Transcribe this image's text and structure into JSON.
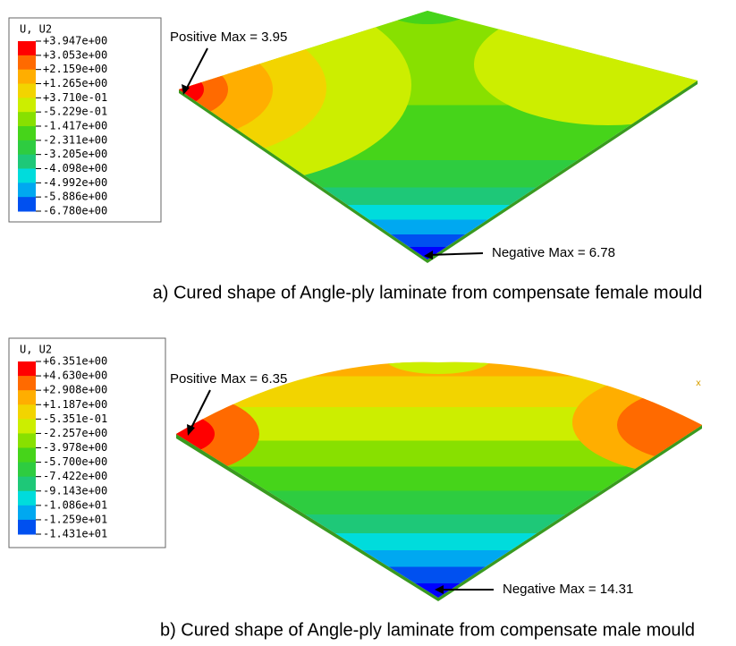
{
  "panels": [
    {
      "legend": {
        "title": "U, U2",
        "labels": [
          "+3.947e+00",
          "+3.053e+00",
          "+2.159e+00",
          "+1.265e+00",
          "+3.710e-01",
          "-5.229e-01",
          "-1.417e+00",
          "-2.311e+00",
          "-3.205e+00",
          "-4.098e+00",
          "-4.992e+00",
          "-5.886e+00",
          "-6.780e+00"
        ]
      },
      "positive_max": "Positive Max = 3.95",
      "negative_max": "Negative Max = 6.78",
      "caption": "a) Cured shape of Angle-ply laminate from compensate female mould"
    },
    {
      "legend": {
        "title": "U, U2",
        "labels": [
          "+6.351e+00",
          "+4.630e+00",
          "+2.908e+00",
          "+1.187e+00",
          "-5.351e-01",
          "-2.257e+00",
          "-3.978e+00",
          "-5.700e+00",
          "-7.422e+00",
          "-9.143e+00",
          "-1.086e+01",
          "-1.259e+01",
          "-1.431e+01"
        ]
      },
      "positive_max": "Positive Max = 6.35",
      "negative_max": "Negative Max = 14.31",
      "caption": "b) Cured shape of Angle-ply laminate from compensate male mould"
    }
  ],
  "triad_label": "x"
}
